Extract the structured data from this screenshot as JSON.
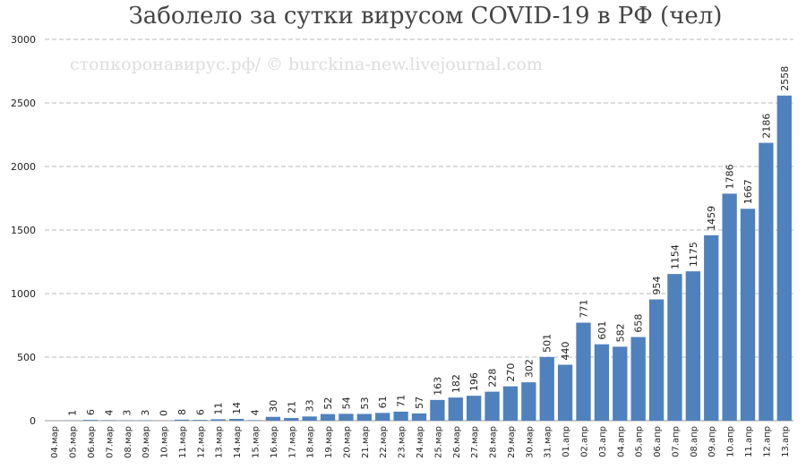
{
  "chart_data": {
    "type": "bar",
    "title": "Заболело за сутки вирусом COVID-19 в РФ (чел)",
    "annotation": "стопкоронавирус.рф/ © burckina-new.livejournal.com",
    "categories": [
      "04.мар",
      "05.мар",
      "06.мар",
      "07.мар",
      "08.мар",
      "09.мар",
      "10.мар",
      "11.мар",
      "12.мар",
      "13.мар",
      "14.мар",
      "15.мар",
      "16.мар",
      "17.мар",
      "18.мар",
      "19.мар",
      "20.мар",
      "21.мар",
      "22.мар",
      "23.мар",
      "24.мар",
      "25.мар",
      "26.мар",
      "27.мар",
      "28.мар",
      "29.мар",
      "30.мар",
      "31.мар",
      "01.апр",
      "02.апр",
      "03.апр",
      "04.апр",
      "05.апр",
      "06.апр",
      "07.апр",
      "08.апр",
      "09.апр",
      "10.апр",
      "11.апр",
      "12.апр",
      "13.апр"
    ],
    "values": [
      null,
      1,
      6,
      4,
      3,
      3,
      0,
      8,
      6,
      11,
      14,
      4,
      30,
      21,
      33,
      52,
      54,
      53,
      61,
      71,
      57,
      163,
      182,
      196,
      228,
      270,
      302,
      501,
      440,
      771,
      601,
      582,
      658,
      954,
      1154,
      1175,
      1459,
      1786,
      1667,
      2186,
      2558
    ],
    "color": "#4f81bd",
    "ylim": [
      0,
      3000
    ],
    "yticks": [
      0,
      500,
      1000,
      1500,
      2000,
      2500,
      3000
    ],
    "grid": true
  }
}
